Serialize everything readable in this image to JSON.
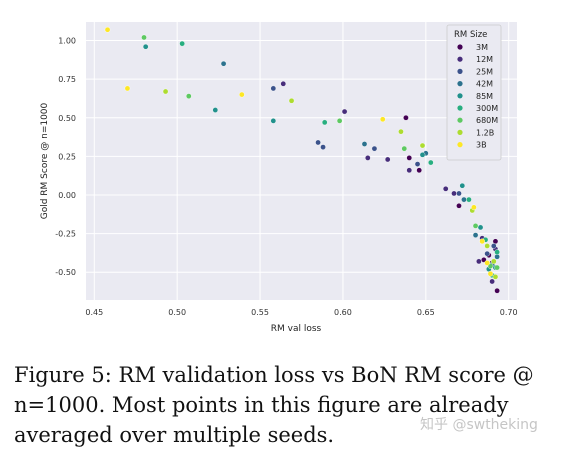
{
  "chart_data": {
    "type": "scatter",
    "xlabel": "RM val loss",
    "ylabel": "Gold RM Score @ n=1000",
    "xlim": [
      0.445,
      0.705
    ],
    "ylim": [
      -0.68,
      1.12
    ],
    "xticks": [
      0.45,
      0.5,
      0.55,
      0.6,
      0.65,
      0.7
    ],
    "xtick_labels": [
      "0.45",
      "0.50",
      "0.55",
      "0.60",
      "0.65",
      "0.70"
    ],
    "yticks": [
      -0.5,
      -0.25,
      0.0,
      0.25,
      0.5,
      0.75,
      1.0
    ],
    "ytick_labels": [
      "-0.50",
      "-0.25",
      "0.00",
      "0.25",
      "0.50",
      "0.75",
      "1.00"
    ],
    "grid": true,
    "legend_title": "RM Size",
    "legend_position": "top-right",
    "series": [
      {
        "name": "3M",
        "color": "#440154",
        "points": [
          [
            0.638,
            0.5
          ],
          [
            0.64,
            0.24
          ],
          [
            0.646,
            0.16
          ],
          [
            0.67,
            -0.07
          ],
          [
            0.685,
            -0.42
          ],
          [
            0.69,
            -0.44
          ],
          [
            0.692,
            -0.3
          ],
          [
            0.693,
            -0.62
          ],
          [
            0.688,
            -0.39
          ]
        ]
      },
      {
        "name": "12M",
        "color": "#472d7b",
        "points": [
          [
            0.564,
            0.72
          ],
          [
            0.601,
            0.54
          ],
          [
            0.615,
            0.24
          ],
          [
            0.627,
            0.23
          ],
          [
            0.64,
            0.16
          ],
          [
            0.662,
            0.04
          ],
          [
            0.667,
            0.01
          ],
          [
            0.682,
            -0.43
          ],
          [
            0.69,
            -0.56
          ],
          [
            0.692,
            -0.35
          ],
          [
            0.684,
            -0.28
          ]
        ]
      },
      {
        "name": "25M",
        "color": "#3b528b",
        "points": [
          [
            0.558,
            0.69
          ],
          [
            0.585,
            0.34
          ],
          [
            0.588,
            0.31
          ],
          [
            0.619,
            0.3
          ],
          [
            0.645,
            0.2
          ],
          [
            0.67,
            0.01
          ],
          [
            0.678,
            -0.1
          ],
          [
            0.687,
            -0.38
          ],
          [
            0.691,
            -0.33
          ]
        ]
      },
      {
        "name": "42M",
        "color": "#2c728e",
        "points": [
          [
            0.528,
            0.85
          ],
          [
            0.613,
            0.33
          ],
          [
            0.65,
            0.27
          ],
          [
            0.673,
            -0.03
          ],
          [
            0.68,
            -0.26
          ],
          [
            0.69,
            -0.45
          ],
          [
            0.693,
            -0.4
          ]
        ]
      },
      {
        "name": "85M",
        "color": "#21918c",
        "points": [
          [
            0.481,
            0.96
          ],
          [
            0.523,
            0.55
          ],
          [
            0.558,
            0.48
          ],
          [
            0.648,
            0.26
          ],
          [
            0.672,
            0.06
          ],
          [
            0.683,
            -0.21
          ],
          [
            0.688,
            -0.48
          ],
          [
            0.692,
            -0.47
          ]
        ]
      },
      {
        "name": "300M",
        "color": "#28ae80",
        "points": [
          [
            0.503,
            0.98
          ],
          [
            0.589,
            0.47
          ],
          [
            0.653,
            0.21
          ],
          [
            0.676,
            -0.03
          ],
          [
            0.686,
            -0.29
          ],
          [
            0.69,
            -0.52
          ],
          [
            0.693,
            -0.37
          ]
        ]
      },
      {
        "name": "680M",
        "color": "#5ec962",
        "points": [
          [
            0.48,
            1.02
          ],
          [
            0.507,
            0.64
          ],
          [
            0.598,
            0.48
          ],
          [
            0.637,
            0.3
          ],
          [
            0.68,
            -0.2
          ],
          [
            0.689,
            -0.46
          ],
          [
            0.693,
            -0.47
          ]
        ]
      },
      {
        "name": "1.2B",
        "color": "#addc30",
        "points": [
          [
            0.493,
            0.67
          ],
          [
            0.569,
            0.61
          ],
          [
            0.635,
            0.41
          ],
          [
            0.648,
            0.32
          ],
          [
            0.678,
            -0.1
          ],
          [
            0.687,
            -0.33
          ],
          [
            0.692,
            -0.53
          ],
          [
            0.691,
            -0.43
          ]
        ]
      },
      {
        "name": "3B",
        "color": "#fde725",
        "points": [
          [
            0.458,
            1.07
          ],
          [
            0.47,
            0.69
          ],
          [
            0.539,
            0.65
          ],
          [
            0.624,
            0.49
          ],
          [
            0.679,
            -0.08
          ],
          [
            0.684,
            -0.3
          ],
          [
            0.689,
            -0.51
          ],
          [
            0.687,
            -0.44
          ]
        ]
      }
    ]
  },
  "caption": "Figure 5: RM validation loss vs BoN RM score @ n=1000. Most points in this figure are already averaged over multiple seeds.",
  "watermark": "知乎 @swtheking"
}
